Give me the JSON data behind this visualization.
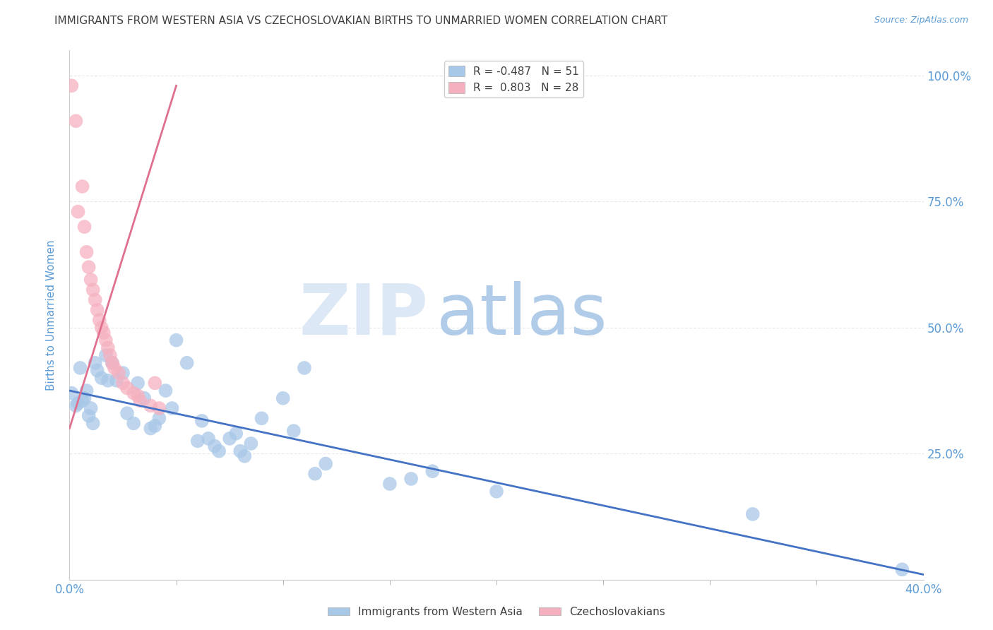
{
  "title": "IMMIGRANTS FROM WESTERN ASIA VS CZECHOSLOVAKIAN BIRTHS TO UNMARRIED WOMEN CORRELATION CHART",
  "source": "Source: ZipAtlas.com",
  "ylabel": "Births to Unmarried Women",
  "legend_entries": [
    {
      "label": "R = -0.487   N = 51",
      "color": "#a8c4e0"
    },
    {
      "label": "R =  0.803   N = 28",
      "color": "#f4a0b0"
    }
  ],
  "legend_label_1": "Immigrants from Western Asia",
  "legend_label_2": "Czechoslovakians",
  "blue_scatter": [
    [
      0.001,
      0.37
    ],
    [
      0.003,
      0.345
    ],
    [
      0.004,
      0.35
    ],
    [
      0.005,
      0.42
    ],
    [
      0.006,
      0.355
    ],
    [
      0.007,
      0.36
    ],
    [
      0.008,
      0.375
    ],
    [
      0.009,
      0.325
    ],
    [
      0.01,
      0.34
    ],
    [
      0.011,
      0.31
    ],
    [
      0.012,
      0.43
    ],
    [
      0.013,
      0.415
    ],
    [
      0.015,
      0.4
    ],
    [
      0.017,
      0.445
    ],
    [
      0.018,
      0.395
    ],
    [
      0.02,
      0.43
    ],
    [
      0.022,
      0.395
    ],
    [
      0.025,
      0.41
    ],
    [
      0.027,
      0.33
    ],
    [
      0.03,
      0.31
    ],
    [
      0.032,
      0.39
    ],
    [
      0.035,
      0.36
    ],
    [
      0.038,
      0.3
    ],
    [
      0.04,
      0.305
    ],
    [
      0.042,
      0.32
    ],
    [
      0.045,
      0.375
    ],
    [
      0.048,
      0.34
    ],
    [
      0.05,
      0.475
    ],
    [
      0.055,
      0.43
    ],
    [
      0.06,
      0.275
    ],
    [
      0.062,
      0.315
    ],
    [
      0.065,
      0.28
    ],
    [
      0.068,
      0.265
    ],
    [
      0.07,
      0.255
    ],
    [
      0.075,
      0.28
    ],
    [
      0.078,
      0.29
    ],
    [
      0.08,
      0.255
    ],
    [
      0.082,
      0.245
    ],
    [
      0.085,
      0.27
    ],
    [
      0.09,
      0.32
    ],
    [
      0.1,
      0.36
    ],
    [
      0.105,
      0.295
    ],
    [
      0.11,
      0.42
    ],
    [
      0.115,
      0.21
    ],
    [
      0.12,
      0.23
    ],
    [
      0.15,
      0.19
    ],
    [
      0.16,
      0.2
    ],
    [
      0.17,
      0.215
    ],
    [
      0.2,
      0.175
    ],
    [
      0.32,
      0.13
    ],
    [
      0.39,
      0.02
    ]
  ],
  "pink_scatter": [
    [
      0.001,
      0.98
    ],
    [
      0.003,
      0.91
    ],
    [
      0.004,
      0.73
    ],
    [
      0.006,
      0.78
    ],
    [
      0.007,
      0.7
    ],
    [
      0.008,
      0.65
    ],
    [
      0.009,
      0.62
    ],
    [
      0.01,
      0.595
    ],
    [
      0.011,
      0.575
    ],
    [
      0.012,
      0.555
    ],
    [
      0.013,
      0.535
    ],
    [
      0.014,
      0.515
    ],
    [
      0.015,
      0.5
    ],
    [
      0.016,
      0.49
    ],
    [
      0.017,
      0.475
    ],
    [
      0.018,
      0.46
    ],
    [
      0.019,
      0.445
    ],
    [
      0.02,
      0.43
    ],
    [
      0.021,
      0.42
    ],
    [
      0.023,
      0.41
    ],
    [
      0.025,
      0.39
    ],
    [
      0.027,
      0.38
    ],
    [
      0.03,
      0.37
    ],
    [
      0.032,
      0.365
    ],
    [
      0.033,
      0.355
    ],
    [
      0.038,
      0.345
    ],
    [
      0.04,
      0.39
    ],
    [
      0.042,
      0.34
    ]
  ],
  "blue_line_x": [
    0.0,
    0.4
  ],
  "blue_line_y": [
    0.375,
    0.01
  ],
  "pink_line_x": [
    0.0,
    0.05
  ],
  "pink_line_y": [
    0.3,
    0.98
  ],
  "xlim": [
    0.0,
    0.4
  ],
  "ylim": [
    0.0,
    1.05
  ],
  "bg_color": "#ffffff",
  "scatter_blue_color": "#a8c8e8",
  "scatter_pink_color": "#f5b0c0",
  "line_blue_color": "#4472c4",
  "line_pink_color": "#e07090",
  "grid_color": "#e8e8e8",
  "title_color": "#404040",
  "axis_color": "#5b9bd5",
  "watermark_zip_color": "#dce8f5",
  "watermark_atlas_color": "#b0cce8"
}
